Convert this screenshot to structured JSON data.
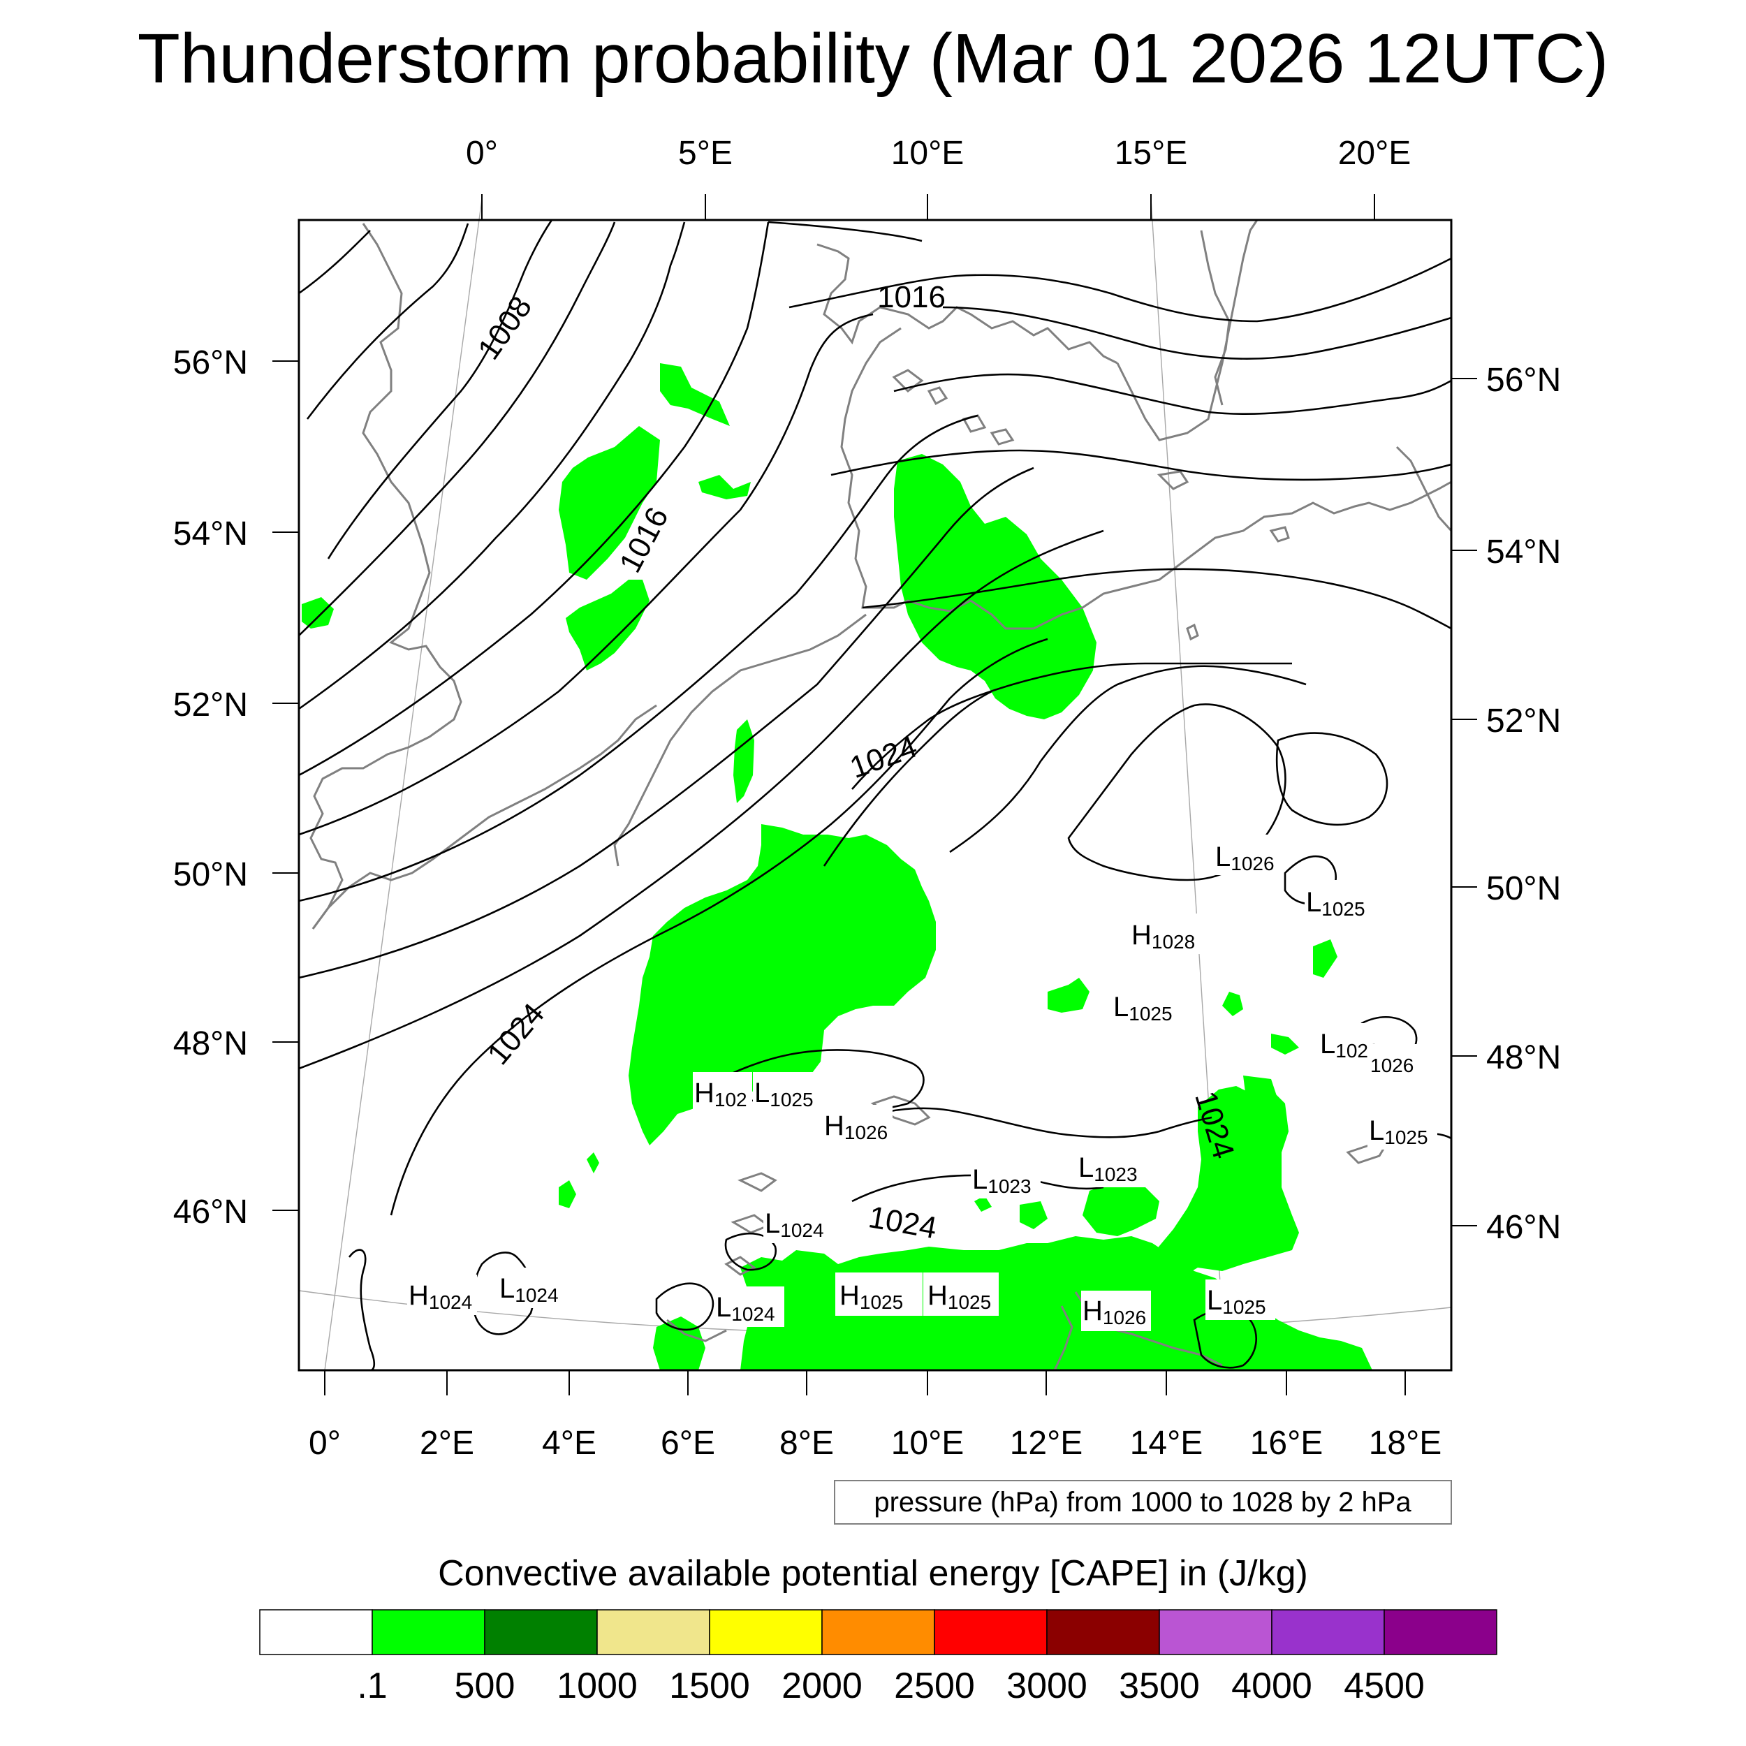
{
  "title": "Thunderstorm probability (Mar 01 2026 12UTC)",
  "top_lon_labels": [
    "0°",
    "5°E",
    "10°E",
    "15°E",
    "20°E"
  ],
  "bottom_lon_labels": [
    "0°",
    "2°E",
    "4°E",
    "6°E",
    "8°E",
    "10°E",
    "12°E",
    "14°E",
    "16°E",
    "18°E"
  ],
  "left_lat_labels": [
    "56°N",
    "54°N",
    "52°N",
    "50°N",
    "48°N",
    "46°N"
  ],
  "right_lat_labels": [
    "56°N",
    "54°N",
    "52°N",
    "50°N",
    "48°N",
    "46°N"
  ],
  "contour_labels": [
    "1008",
    "1016",
    "1016",
    "1024",
    "1024",
    "1024",
    "1024"
  ],
  "pressure_centers": [
    {
      "type": "L",
      "value": "1026"
    },
    {
      "type": "L",
      "value": "1025"
    },
    {
      "type": "H",
      "value": "1028"
    },
    {
      "type": "L",
      "value": "1025"
    },
    {
      "type": "L",
      "value": "1026"
    },
    {
      "type": "",
      "value": "1026"
    },
    {
      "type": "H",
      "value": "102"
    },
    {
      "type": "L",
      "value": "1025"
    },
    {
      "type": "H",
      "value": "1026"
    },
    {
      "type": "L",
      "value": "1025"
    },
    {
      "type": "L",
      "value": "1023"
    },
    {
      "type": "L",
      "value": "1023"
    },
    {
      "type": "L",
      "value": "1024"
    },
    {
      "type": "H",
      "value": "1024"
    },
    {
      "type": "L",
      "value": "1024"
    },
    {
      "type": "L",
      "value": "1024"
    },
    {
      "type": "H",
      "value": "1025"
    },
    {
      "type": "H",
      "value": "1025"
    },
    {
      "type": "H",
      "value": "1026"
    },
    {
      "type": "L",
      "value": "1025"
    }
  ],
  "contour_info": "pressure (hPa) from 1000 to 1028 by 2 hPa",
  "colorbar": {
    "title": "Convective available potential energy [CAPE] in (J/kg)",
    "colors": [
      "#ffffff",
      "#00ff00",
      "#008000",
      "#f0e68c",
      "#ffff00",
      "#ff8c00",
      "#ff0000",
      "#8b0000",
      "#ba55d3",
      "#9932cc",
      "#8b008b"
    ],
    "tick_labels": [
      ".1",
      "500",
      "1000",
      "1500",
      "2000",
      "2500",
      "3000",
      "3500",
      "4000",
      "4500"
    ]
  },
  "colors": {
    "cape_area": "#00ff00",
    "coastline": "#808080",
    "isobar": "#000000"
  }
}
